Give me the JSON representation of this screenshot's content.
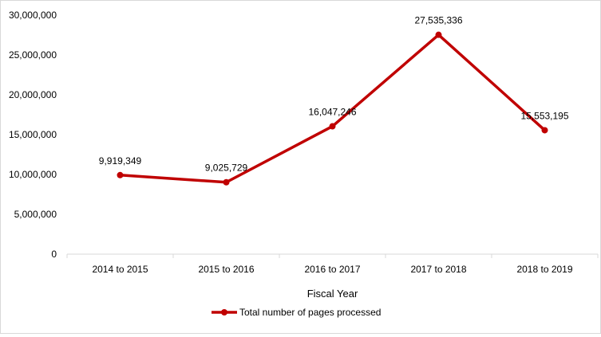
{
  "chart_data": {
    "type": "line",
    "title": "",
    "xlabel": "Fiscal Year",
    "ylabel": "",
    "categories": [
      "2014 to 2015",
      "2015 to 2016",
      "2016 to 2017",
      "2017 to 2018",
      "2018 to 2019"
    ],
    "series": [
      {
        "name": "Total number of pages processed",
        "values": [
          9919349,
          9025729,
          16047246,
          27535336,
          15553195
        ],
        "labels": [
          "9,919,349",
          "9,025,729",
          "16,047,246",
          "27,535,336",
          "15,553,195"
        ],
        "color": "#c00000"
      }
    ],
    "ylim": [
      0,
      30000000
    ],
    "yticks": [
      "0",
      "5,000,000",
      "10,000,000",
      "15,000,000",
      "20,000,000",
      "25,000,000",
      "30,000,000"
    ],
    "grid": false,
    "legend": "bottom"
  }
}
